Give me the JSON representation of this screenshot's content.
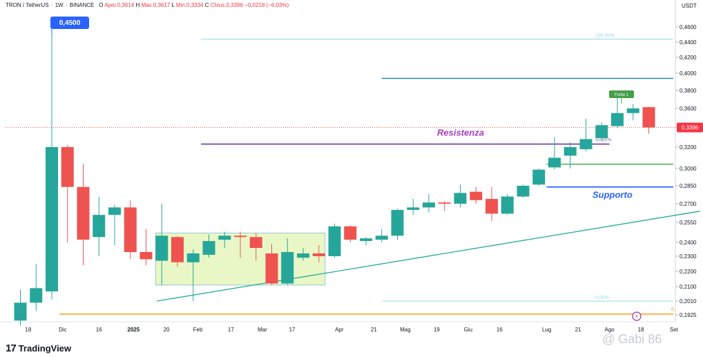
{
  "header": {
    "symbol": "TRON / TetherUS",
    "interval": "1W",
    "exchange": "BINANCE",
    "open_label": "O",
    "open": "Aper.0,3614",
    "high_label": "H",
    "high": "Max.0,3617",
    "low_label": "L",
    "low": "Min.0,3334",
    "close_label": "C",
    "close": "Chius.0,3396",
    "change": "−0,0218 (−6,03%)"
  },
  "brand": {
    "mark": "17",
    "name": "TradingView"
  },
  "watermark": "@ Gabi 86",
  "colors": {
    "up": "#26a69a",
    "down": "#ef5350",
    "grid": "#f0f3fa",
    "resistance": "#5b2db0",
    "support_line": "#2962ff",
    "green_line": "#4caf50",
    "trendline": "#22ab94",
    "orange_line": "#f7a21b",
    "price_label": "#f23645",
    "annot_resistance": "#a83bbd",
    "annot_support": "#2962ff",
    "range_box": "#e9f7c6",
    "high_marker": "#2962ff",
    "fib_line": "#a5dff0"
  },
  "chart_data": {
    "type": "candlestick",
    "quote_unit": "USDT",
    "ylim": [
      0.183,
      0.472
    ],
    "y_ticks": [
      "0,4600",
      "0,4400",
      "0,4200",
      "0,4000",
      "0,3800",
      "0,3600",
      "0,3400",
      "0,3200",
      "0,3000",
      "0,2850",
      "0,2700",
      "0,2550",
      "0,2400",
      "0,2300",
      "0,2200",
      "0,2100",
      "0,2010",
      "0,1925"
    ],
    "x_ticks": [
      "18",
      "Dic",
      "16",
      "2025",
      "20",
      "Feb",
      "17",
      "Mar",
      "17",
      "Apr",
      "21",
      "Mag",
      "19",
      "Giu",
      "16",
      "Lug",
      "21",
      "Ago",
      "18",
      "Set"
    ],
    "candles": [
      {
        "o": 0.189,
        "h": 0.208,
        "l": 0.186,
        "c": 0.2
      },
      {
        "o": 0.2,
        "h": 0.225,
        "l": 0.195,
        "c": 0.209
      },
      {
        "o": 0.207,
        "h": 0.45,
        "l": 0.202,
        "c": 0.32
      },
      {
        "o": 0.32,
        "h": 0.322,
        "l": 0.24,
        "c": 0.284
      },
      {
        "o": 0.284,
        "h": 0.304,
        "l": 0.224,
        "c": 0.242
      },
      {
        "o": 0.244,
        "h": 0.276,
        "l": 0.23,
        "c": 0.261
      },
      {
        "o": 0.261,
        "h": 0.269,
        "l": 0.238,
        "c": 0.267
      },
      {
        "o": 0.267,
        "h": 0.273,
        "l": 0.228,
        "c": 0.233
      },
      {
        "o": 0.233,
        "h": 0.25,
        "l": 0.224,
        "c": 0.228
      },
      {
        "o": 0.227,
        "h": 0.27,
        "l": 0.211,
        "c": 0.245
      },
      {
        "o": 0.244,
        "h": 0.245,
        "l": 0.223,
        "c": 0.226
      },
      {
        "o": 0.226,
        "h": 0.235,
        "l": 0.201,
        "c": 0.232
      },
      {
        "o": 0.231,
        "h": 0.246,
        "l": 0.229,
        "c": 0.241
      },
      {
        "o": 0.242,
        "h": 0.248,
        "l": 0.236,
        "c": 0.245
      },
      {
        "o": 0.245,
        "h": 0.248,
        "l": 0.229,
        "c": 0.244
      },
      {
        "o": 0.244,
        "h": 0.247,
        "l": 0.227,
        "c": 0.236
      },
      {
        "o": 0.232,
        "h": 0.239,
        "l": 0.211,
        "c": 0.212
      },
      {
        "o": 0.212,
        "h": 0.243,
        "l": 0.211,
        "c": 0.233
      },
      {
        "o": 0.229,
        "h": 0.236,
        "l": 0.227,
        "c": 0.232
      },
      {
        "o": 0.232,
        "h": 0.238,
        "l": 0.226,
        "c": 0.23
      },
      {
        "o": 0.23,
        "h": 0.254,
        "l": 0.229,
        "c": 0.252
      },
      {
        "o": 0.252,
        "h": 0.253,
        "l": 0.24,
        "c": 0.242
      },
      {
        "o": 0.241,
        "h": 0.244,
        "l": 0.238,
        "c": 0.243
      },
      {
        "o": 0.242,
        "h": 0.25,
        "l": 0.24,
        "c": 0.245
      },
      {
        "o": 0.245,
        "h": 0.266,
        "l": 0.242,
        "c": 0.265
      },
      {
        "o": 0.265,
        "h": 0.274,
        "l": 0.261,
        "c": 0.267
      },
      {
        "o": 0.267,
        "h": 0.278,
        "l": 0.263,
        "c": 0.271
      },
      {
        "o": 0.271,
        "h": 0.272,
        "l": 0.264,
        "c": 0.27
      },
      {
        "o": 0.27,
        "h": 0.286,
        "l": 0.267,
        "c": 0.279
      },
      {
        "o": 0.28,
        "h": 0.284,
        "l": 0.27,
        "c": 0.273
      },
      {
        "o": 0.274,
        "h": 0.284,
        "l": 0.256,
        "c": 0.262
      },
      {
        "o": 0.262,
        "h": 0.278,
        "l": 0.261,
        "c": 0.276
      },
      {
        "o": 0.276,
        "h": 0.286,
        "l": 0.275,
        "c": 0.285
      },
      {
        "o": 0.286,
        "h": 0.3,
        "l": 0.285,
        "c": 0.299
      },
      {
        "o": 0.301,
        "h": 0.33,
        "l": 0.299,
        "c": 0.31
      },
      {
        "o": 0.312,
        "h": 0.325,
        "l": 0.3,
        "c": 0.32
      },
      {
        "o": 0.318,
        "h": 0.349,
        "l": 0.316,
        "c": 0.328
      },
      {
        "o": 0.329,
        "h": 0.345,
        "l": 0.326,
        "c": 0.342
      },
      {
        "o": 0.341,
        "h": 0.373,
        "l": 0.339,
        "c": 0.355
      },
      {
        "o": 0.355,
        "h": 0.365,
        "l": 0.347,
        "c": 0.36
      },
      {
        "o": 0.3614,
        "h": 0.3617,
        "l": 0.3334,
        "c": 0.3396
      }
    ],
    "levels": [
      {
        "name": "Resistenza",
        "value": 0.323
      },
      {
        "name": "Supporto",
        "value": 0.284
      },
      {
        "name": "green-level",
        "value": 0.304
      },
      {
        "name": "upper-level",
        "value": 0.394
      },
      {
        "name": "orange-level",
        "value": 0.193
      }
    ],
    "fib": {
      "level_100": "100,00%",
      "level_50": "50,00%",
      "level_0": "0,00%",
      "value_100": 0.444,
      "value_0": 0.201
    },
    "trendline": {
      "from_index": 9,
      "from_value": 0.201,
      "to_index": 43,
      "to_value": 0.264
    },
    "range_box": {
      "from_index": 9,
      "to_index": 19,
      "top": 0.247,
      "bottom": 0.211
    },
    "last_price_label": "0,3396",
    "high_label": "0,4500",
    "annotations": {
      "resistance": "Resistenza",
      "support": "Supporto",
      "badge": "Fonte 1"
    },
    "partial_axis_label": "6"
  }
}
